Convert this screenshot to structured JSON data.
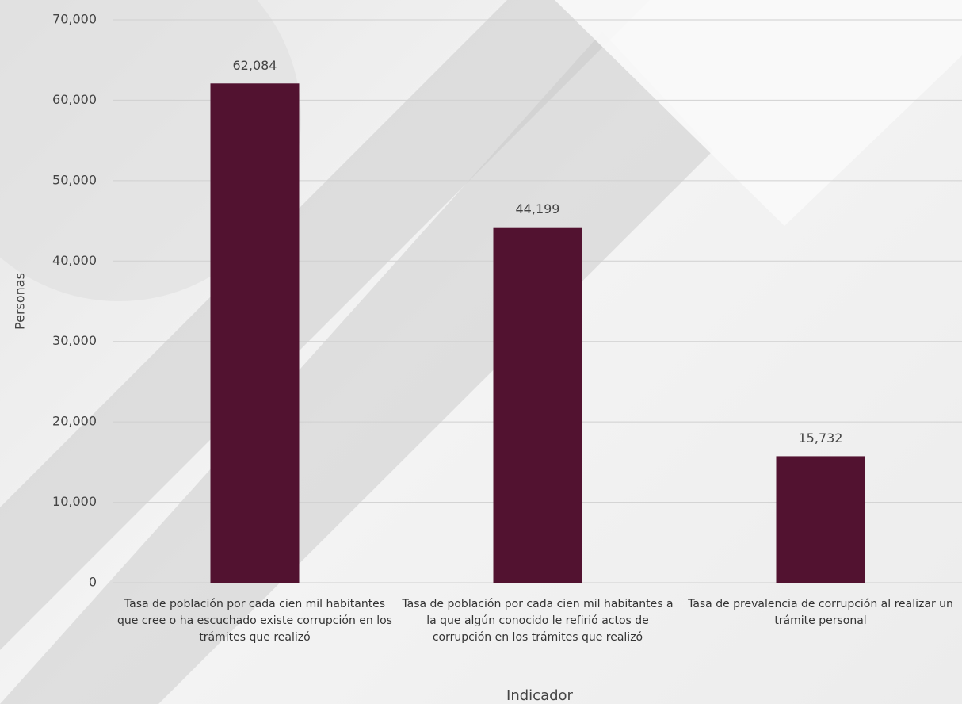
{
  "chart_data": {
    "type": "bar",
    "y_axis_label": "Personas",
    "x_axis_label": "Indicador",
    "categories": [
      "Tasa de población por cada cien mil habitantes que cree o ha escuchado existe corrupción en los trámites que realizó",
      "Tasa de población por cada cien mil habitantes a la que algún conocido le refirió actos de corrupción en los trámites que realizó",
      "Tasa de prevalencia de corrupción al realizar un trámite personal"
    ],
    "values": [
      62084,
      44199,
      15732
    ],
    "value_labels": [
      "62,084",
      "44,199",
      "15,732"
    ],
    "color": "#521230",
    "ylim": [
      0,
      70000
    ],
    "yticks": [
      0,
      {
        "value": 10000,
        "label": "10,000"
      },
      {
        "value": 20000,
        "label": "20,000"
      },
      {
        "value": 30000,
        "label": "30,000"
      },
      {
        "value": 40000,
        "label": "40,000"
      },
      {
        "value": 50000,
        "label": "50,000"
      },
      {
        "value": 60000,
        "label": "60,000"
      },
      {
        "value": 70000,
        "label": "70,000"
      }
    ],
    "grid": true
  }
}
